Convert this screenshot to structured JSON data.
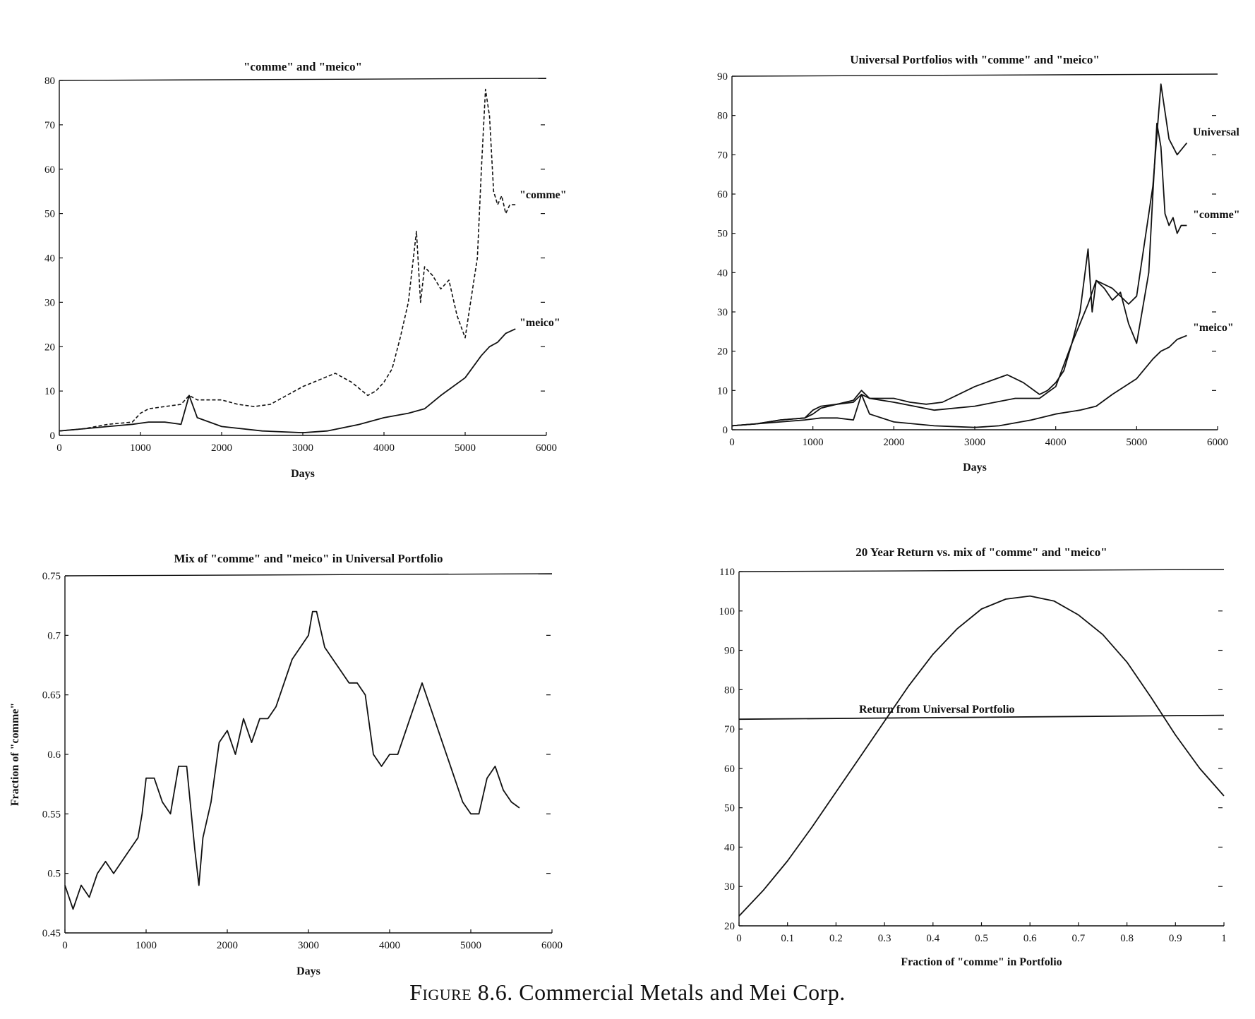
{
  "caption": {
    "label": "Figure 8.6.",
    "text": "Commercial Metals and Mei Corp."
  },
  "chart_data": [
    {
      "type": "line",
      "title": "\"comme\" and \"meico\"",
      "xlabel": "Days",
      "ylabel": "",
      "xlim": [
        0,
        6000
      ],
      "ylim": [
        0,
        80
      ],
      "xticks": [
        0,
        1000,
        2000,
        3000,
        4000,
        5000,
        6000
      ],
      "yticks": [
        0,
        10,
        20,
        30,
        40,
        50,
        60,
        70,
        80
      ],
      "grid": false,
      "series": [
        {
          "name": "\"comme\"",
          "style": "dashed",
          "x": [
            0,
            300,
            600,
            900,
            1000,
            1100,
            1300,
            1500,
            1600,
            1700,
            1800,
            2000,
            2200,
            2400,
            2600,
            2800,
            3000,
            3200,
            3400,
            3500,
            3600,
            3800,
            3900,
            4000,
            4100,
            4200,
            4300,
            4400,
            4450,
            4500,
            4600,
            4700,
            4800,
            4900,
            5000,
            5100,
            5150,
            5200,
            5250,
            5300,
            5350,
            5400,
            5450,
            5500,
            5550,
            5620
          ],
          "y": [
            1,
            1.5,
            2.5,
            3,
            5,
            6,
            6.5,
            7,
            9,
            8,
            8,
            8,
            7,
            6.5,
            7,
            9,
            11,
            12.5,
            14,
            13,
            12,
            9,
            10,
            12,
            15,
            22,
            30,
            46,
            30,
            38,
            36,
            33,
            35,
            27,
            22,
            34,
            40,
            60,
            78,
            72,
            55,
            52,
            54,
            50,
            52,
            52
          ]
        },
        {
          "name": "\"meico\"",
          "style": "solid",
          "x": [
            0,
            300,
            600,
            900,
            1100,
            1300,
            1500,
            1600,
            1700,
            2000,
            2500,
            3000,
            3300,
            3700,
            4000,
            4300,
            4500,
            4700,
            5000,
            5200,
            5300,
            5400,
            5500,
            5620
          ],
          "y": [
            1,
            1.5,
            2,
            2.5,
            3,
            3,
            2.5,
            9,
            4,
            2,
            1,
            0.6,
            1,
            2.5,
            4,
            5,
            6,
            9,
            13,
            18,
            20,
            21,
            23,
            24
          ]
        }
      ],
      "annotations": [
        "\"comme\"",
        "\"meico\""
      ]
    },
    {
      "type": "line",
      "title": "Universal Portfolios with \"comme\" and \"meico\"",
      "xlabel": "Days",
      "ylabel": "",
      "xlim": [
        0,
        6000
      ],
      "ylim": [
        0,
        90
      ],
      "xticks": [
        0,
        1000,
        2000,
        3000,
        4000,
        5000,
        6000
      ],
      "yticks": [
        0,
        10,
        20,
        30,
        40,
        50,
        60,
        70,
        80,
        90
      ],
      "grid": false,
      "series": [
        {
          "name": "Universal",
          "style": "solid",
          "x": [
            0,
            300,
            600,
            900,
            1000,
            1100,
            1300,
            1500,
            1600,
            1700,
            2000,
            2500,
            3000,
            3500,
            3800,
            4000,
            4200,
            4400,
            4500,
            4700,
            4900,
            5000,
            5100,
            5200,
            5250,
            5300,
            5400,
            5500,
            5620
          ],
          "y": [
            1,
            1.5,
            2.5,
            3,
            4,
            5.5,
            6.5,
            7.5,
            10,
            8,
            7,
            5,
            6,
            8,
            8,
            11,
            22,
            32,
            38,
            36,
            32,
            34,
            48,
            62,
            75,
            88,
            74,
            70,
            73
          ]
        },
        {
          "name": "\"comme\"",
          "style": "solid",
          "x": [
            0,
            300,
            600,
            900,
            1000,
            1100,
            1300,
            1500,
            1600,
            1700,
            1800,
            2000,
            2200,
            2400,
            2600,
            2800,
            3000,
            3200,
            3400,
            3500,
            3600,
            3800,
            3900,
            4000,
            4100,
            4200,
            4300,
            4400,
            4450,
            4500,
            4600,
            4700,
            4800,
            4900,
            5000,
            5100,
            5150,
            5200,
            5250,
            5300,
            5350,
            5400,
            5450,
            5500,
            5550,
            5620
          ],
          "y": [
            1,
            1.5,
            2.5,
            3,
            5,
            6,
            6.5,
            7,
            9,
            8,
            8,
            8,
            7,
            6.5,
            7,
            9,
            11,
            12.5,
            14,
            13,
            12,
            9,
            10,
            12,
            15,
            22,
            30,
            46,
            30,
            38,
            36,
            33,
            35,
            27,
            22,
            34,
            40,
            60,
            78,
            72,
            55,
            52,
            54,
            50,
            52,
            52
          ]
        },
        {
          "name": "\"meico\"",
          "style": "solid",
          "x": [
            0,
            300,
            600,
            900,
            1100,
            1300,
            1500,
            1600,
            1700,
            2000,
            2500,
            3000,
            3300,
            3700,
            4000,
            4300,
            4500,
            4700,
            5000,
            5200,
            5300,
            5400,
            5500,
            5620
          ],
          "y": [
            1,
            1.5,
            2,
            2.5,
            3,
            3,
            2.5,
            9,
            4,
            2,
            1,
            0.6,
            1,
            2.5,
            4,
            5,
            6,
            9,
            13,
            18,
            20,
            21,
            23,
            24
          ]
        }
      ],
      "annotations": [
        "Universal",
        "\"comme\"",
        "\"meico\""
      ]
    },
    {
      "type": "line",
      "title": "Mix of \"comme\" and \"meico\" in Universal Portfolio",
      "xlabel": "Days",
      "ylabel": "Fraction of \"comme\"",
      "xlim": [
        0,
        6000
      ],
      "ylim": [
        0.45,
        0.75
      ],
      "xticks": [
        0,
        1000,
        2000,
        3000,
        4000,
        5000,
        6000
      ],
      "yticks": [
        0.45,
        0.5,
        0.55,
        0.6,
        0.65,
        0.7,
        0.75
      ],
      "ytick_labels": [
        "0.45",
        "0.5",
        "0.55",
        "0.6",
        "0.65",
        "0.7",
        "0.75"
      ],
      "grid": false,
      "series": [
        {
          "style": "solid",
          "x": [
            0,
            100,
            200,
            300,
            400,
            500,
            600,
            700,
            800,
            900,
            950,
            1000,
            1100,
            1200,
            1300,
            1400,
            1500,
            1600,
            1650,
            1700,
            1800,
            1900,
            2000,
            2100,
            2200,
            2300,
            2400,
            2500,
            2600,
            2700,
            2800,
            2900,
            3000,
            3050,
            3100,
            3200,
            3300,
            3400,
            3500,
            3600,
            3700,
            3800,
            3900,
            4000,
            4100,
            4200,
            4300,
            4400,
            4500,
            4600,
            4700,
            4800,
            4900,
            5000,
            5100,
            5200,
            5300,
            5400,
            5500,
            5600
          ],
          "y": [
            0.49,
            0.47,
            0.49,
            0.48,
            0.5,
            0.51,
            0.5,
            0.51,
            0.52,
            0.53,
            0.55,
            0.58,
            0.58,
            0.56,
            0.55,
            0.59,
            0.59,
            0.52,
            0.49,
            0.53,
            0.56,
            0.61,
            0.62,
            0.6,
            0.63,
            0.61,
            0.63,
            0.63,
            0.64,
            0.66,
            0.68,
            0.69,
            0.7,
            0.72,
            0.72,
            0.69,
            0.68,
            0.67,
            0.66,
            0.66,
            0.65,
            0.6,
            0.59,
            0.6,
            0.6,
            0.62,
            0.64,
            0.66,
            0.64,
            0.62,
            0.6,
            0.58,
            0.56,
            0.55,
            0.55,
            0.58,
            0.59,
            0.57,
            0.56,
            0.555
          ]
        }
      ]
    },
    {
      "type": "line",
      "title": "20 Year Return vs. mix of \"comme\" and \"meico\"",
      "xlabel": "Fraction of \"comme\" in Portfolio",
      "ylabel": "",
      "xlim": [
        0,
        1
      ],
      "ylim": [
        20,
        110
      ],
      "xticks": [
        0,
        0.1,
        0.2,
        0.3,
        0.4,
        0.5,
        0.6,
        0.7,
        0.8,
        0.9,
        1
      ],
      "xtick_labels": [
        "0",
        "0.1",
        "0.2",
        "0.3",
        "0.4",
        "0.5",
        "0.6",
        "0.7",
        "0.8",
        "0.9",
        "1"
      ],
      "yticks": [
        20,
        30,
        40,
        50,
        60,
        70,
        80,
        90,
        100,
        110
      ],
      "grid": false,
      "series": [
        {
          "style": "solid",
          "x": [
            0,
            0.05,
            0.1,
            0.15,
            0.2,
            0.25,
            0.3,
            0.35,
            0.4,
            0.45,
            0.5,
            0.55,
            0.6,
            0.65,
            0.7,
            0.75,
            0.8,
            0.85,
            0.9,
            0.95,
            1
          ],
          "y": [
            22.5,
            29,
            36.5,
            45,
            54,
            63,
            72,
            81,
            89,
            95.5,
            100.5,
            103,
            103.8,
            102.5,
            99,
            94,
            87,
            78,
            68.5,
            60,
            53
          ]
        },
        {
          "style": "solid",
          "x": [
            0,
            1
          ],
          "y": [
            72.5,
            73.5
          ]
        }
      ],
      "annotations": [
        "Return from Universal Portfolio"
      ]
    }
  ]
}
